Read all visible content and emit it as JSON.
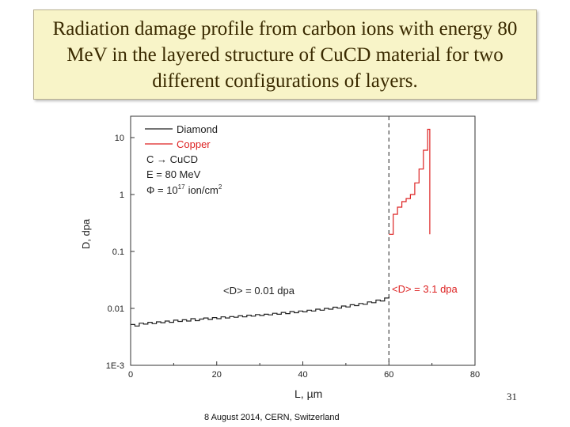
{
  "slide": {
    "title": "Radiation damage profile from carbon ions with energy 80 MeV in the layered structure of CuCD material for two different configurations of layers.",
    "page_number": "31",
    "footer": "8 August 2014, CERN, Switzerland"
  },
  "chart_data": {
    "type": "line",
    "title": "",
    "xlabel": "L, µm",
    "ylabel": "D, dpa",
    "xlim": [
      0,
      80
    ],
    "ylim": [
      0.001,
      20
    ],
    "yscale": "log",
    "x_ticks": [
      "0",
      "20",
      "40",
      "60",
      "80"
    ],
    "y_ticks": [
      {
        "label": "1E-3",
        "value": 0.001
      },
      {
        "label": "0.01",
        "value": 0.01
      },
      {
        "label": "0.1",
        "value": 0.1
      },
      {
        "label": "1",
        "value": 1
      },
      {
        "label": "10",
        "value": 10
      }
    ],
    "legend": {
      "placement": "top-left",
      "entries": [
        {
          "name": "Diamond",
          "color": "#222222"
        },
        {
          "name": "Copper",
          "color": "#dd2222"
        }
      ]
    },
    "annotations": {
      "reaction": "C → CuCD",
      "energy": "E = 80 MeV",
      "fluence_prefix": "Φ = 10",
      "fluence_exp": "17",
      "fluence_unit": "ion/cm",
      "fluence_unit_exp": "2",
      "diamond_mean": "<D> = 0.01 dpa",
      "copper_mean": "<D> = 3.1 dpa"
    },
    "boundary_x": 60,
    "series": [
      {
        "name": "Diamond",
        "color": "#222222",
        "x": [
          0,
          1,
          2,
          3,
          4,
          5,
          6,
          7,
          8,
          9,
          10,
          11,
          12,
          13,
          14,
          15,
          16,
          17,
          18,
          19,
          20,
          21,
          22,
          23,
          24,
          25,
          26,
          27,
          28,
          29,
          30,
          31,
          32,
          33,
          34,
          35,
          36,
          37,
          38,
          39,
          40,
          41,
          42,
          43,
          44,
          45,
          46,
          47,
          48,
          49,
          50,
          51,
          52,
          53,
          54,
          55,
          56,
          57,
          58,
          59,
          60
        ],
        "values": [
          0.0052,
          0.0049,
          0.0055,
          0.0053,
          0.0057,
          0.0054,
          0.0058,
          0.0056,
          0.006,
          0.0057,
          0.0062,
          0.0059,
          0.0063,
          0.006,
          0.0066,
          0.0061,
          0.0065,
          0.0068,
          0.0064,
          0.0069,
          0.0066,
          0.0071,
          0.0068,
          0.0072,
          0.007,
          0.0074,
          0.0071,
          0.0076,
          0.0073,
          0.0078,
          0.0075,
          0.0079,
          0.0077,
          0.0082,
          0.0079,
          0.0085,
          0.0081,
          0.0088,
          0.0084,
          0.009,
          0.0087,
          0.0093,
          0.009,
          0.0097,
          0.0093,
          0.01,
          0.0097,
          0.0105,
          0.0101,
          0.011,
          0.0106,
          0.0116,
          0.0112,
          0.0122,
          0.0118,
          0.013,
          0.0126,
          0.014,
          0.0135,
          0.0152,
          0.016
        ]
      },
      {
        "name": "Copper",
        "color": "#dd2222",
        "x": [
          60,
          61,
          62,
          63,
          64,
          65,
          66,
          67,
          68,
          69
        ],
        "values": [
          0.2,
          0.45,
          0.6,
          0.75,
          0.85,
          1.0,
          1.6,
          2.8,
          6.0,
          14.0
        ],
        "drop_at": 69,
        "drop_to": 0.2
      }
    ]
  }
}
